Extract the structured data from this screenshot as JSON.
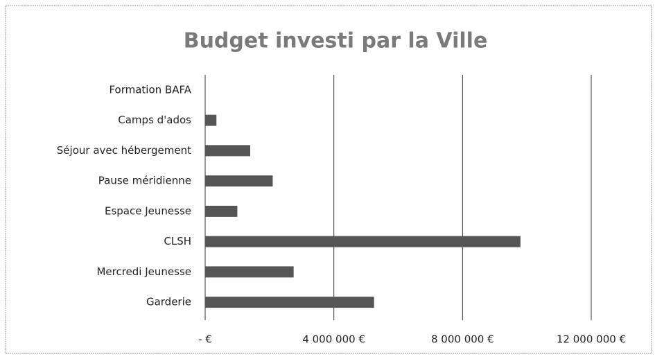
{
  "chart_data": {
    "type": "bar",
    "orientation": "horizontal",
    "title": "Budget investi par la Ville",
    "categories": [
      "Garderie",
      "Mercredi Jeunesse",
      "CLSH",
      "Espace Jeunesse",
      "Pause méridienne",
      "Séjour avec hébergement",
      "Camps d'ados",
      "Formation BAFA"
    ],
    "values": [
      5250000,
      2750000,
      9800000,
      1000000,
      2100000,
      1400000,
      350000,
      0
    ],
    "color": "#555555",
    "xlim": [
      0,
      12000000
    ],
    "xticks": [
      {
        "value": 0,
        "label": "-   €"
      },
      {
        "value": 4000000,
        "label": "4 000 000 €"
      },
      {
        "value": 8000000,
        "label": "8 000 000 €"
      },
      {
        "value": 12000000,
        "label": "12 000 000 €"
      }
    ],
    "grid": true
  }
}
